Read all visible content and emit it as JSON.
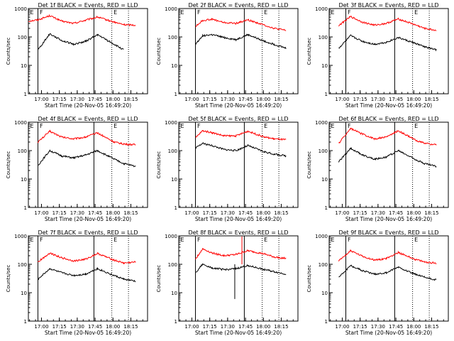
{
  "figure": {
    "common": {
      "xlabel": "Start Time (20-Nov-05 16:49:20)",
      "ylabel": "Counts/sec",
      "x_tick_labels": [
        "17:00",
        "17:15",
        "17:30",
        "17:45",
        "18:00",
        "18:15"
      ],
      "y_tick_labels": [
        "1",
        "10",
        "100",
        "1000"
      ],
      "marker_labels": [
        "E",
        "F",
        "E"
      ],
      "colors": {
        "events": "#000000",
        "lld": "#ff0000",
        "axes": "#000000",
        "background": "#ffffff"
      }
    },
    "titles": [
      "Det 1f BLACK = Events, RED = LLD",
      "Det 2f BLACK = Events, RED = LLD",
      "Det 3f BLACK = Events, RED = LLD",
      "Det 4f BLACK = Events, RED = LLD",
      "Det 5f BLACK = Events, RED = LLD",
      "Det 6f BLACK = Events, RED = LLD",
      "Det 7f BLACK = Events, RED = LLD",
      "Det 8f BLACK = Events, RED = LLD",
      "Det 9f BLACK = Events, RED = LLD"
    ]
  },
  "chart_data": [
    {
      "type": "line",
      "title": "Det 1f BLACK = Events, RED = LLD",
      "xlabel": "Start Time (20-Nov-05 16:49:20)",
      "ylabel": "Counts/sec",
      "y_scale": "log",
      "ylim": [
        1,
        1000
      ],
      "xlim_minutes_after_start": [
        0,
        100
      ],
      "x_minutes": [
        0,
        8,
        18,
        28,
        38,
        48,
        58,
        72,
        80,
        90
      ],
      "series": [
        {
          "name": "LLD",
          "color": "#ff0000",
          "values": [
            360,
            400,
            560,
            360,
            300,
            390,
            500,
            330,
            270,
            260
          ]
        },
        {
          "name": "Events",
          "color": "#000000",
          "values": [
            null,
            35,
            130,
            75,
            55,
            70,
            120,
            55,
            35,
            null
          ]
        }
      ],
      "vertical_lines": {
        "solid_minutes": [
          8,
          55
        ],
        "dotted_minutes": [
          70,
          84
        ]
      }
    },
    {
      "type": "line",
      "title": "Det 2f BLACK = Events, RED = LLD",
      "xlabel": "Start Time (20-Nov-05 16:49:20)",
      "ylabel": "Counts/sec",
      "y_scale": "log",
      "ylim": [
        1,
        1000
      ],
      "xlim_minutes_after_start": [
        0,
        100
      ],
      "x_minutes": [
        0,
        14,
        20,
        28,
        38,
        48,
        58,
        72,
        80,
        90
      ],
      "series": [
        {
          "name": "LLD",
          "color": "#ff0000",
          "values": [
            null,
            230,
            380,
            420,
            320,
            300,
            400,
            260,
            200,
            170
          ]
        },
        {
          "name": "Events",
          "color": "#000000",
          "values": [
            null,
            55,
            110,
            120,
            95,
            80,
            120,
            70,
            55,
            40
          ]
        }
      ],
      "vertical_lines": {
        "solid_minutes": [
          14,
          55
        ],
        "dotted_minutes": [
          70,
          84
        ]
      }
    },
    {
      "type": "line",
      "title": "Det 3f BLACK = Events, RED = LLD",
      "xlabel": "Start Time (20-Nov-05 16:49:20)",
      "ylabel": "Counts/sec",
      "y_scale": "log",
      "ylim": [
        1,
        1000
      ],
      "xlim_minutes_after_start": [
        0,
        100
      ],
      "x_minutes": [
        0,
        8,
        18,
        28,
        38,
        48,
        58,
        72,
        80,
        90
      ],
      "series": [
        {
          "name": "LLD",
          "color": "#ff0000",
          "values": [
            null,
            250,
            520,
            330,
            260,
            300,
            430,
            270,
            200,
            170
          ]
        },
        {
          "name": "Events",
          "color": "#000000",
          "values": [
            null,
            40,
            110,
            70,
            55,
            65,
            95,
            60,
            45,
            35
          ]
        }
      ],
      "vertical_lines": {
        "solid_minutes": [
          14,
          55
        ],
        "dotted_minutes": [
          70,
          84
        ]
      }
    },
    {
      "type": "line",
      "title": "Det 4f BLACK = Events, RED = LLD",
      "xlabel": "Start Time (20-Nov-05 16:49:20)",
      "ylabel": "Counts/sec",
      "y_scale": "log",
      "ylim": [
        1,
        1000
      ],
      "xlim_minutes_after_start": [
        0,
        100
      ],
      "x_minutes": [
        0,
        8,
        18,
        28,
        38,
        48,
        58,
        72,
        80,
        90
      ],
      "series": [
        {
          "name": "LLD",
          "color": "#ff0000",
          "values": [
            null,
            200,
            480,
            300,
            260,
            300,
            420,
            200,
            170,
            160
          ]
        },
        {
          "name": "Events",
          "color": "#000000",
          "values": [
            null,
            30,
            100,
            65,
            55,
            70,
            100,
            50,
            35,
            28
          ]
        }
      ],
      "vertical_lines": {
        "solid_minutes": [
          8,
          55
        ],
        "dotted_minutes": [
          70,
          84
        ]
      }
    },
    {
      "type": "line",
      "title": "Det 5f BLACK = Events, RED = LLD",
      "xlabel": "Start Time (20-Nov-05 16:49:20)",
      "ylabel": "Counts/sec",
      "y_scale": "log",
      "ylim": [
        1,
        1000
      ],
      "xlim_minutes_after_start": [
        0,
        100
      ],
      "x_minutes": [
        0,
        14,
        20,
        28,
        38,
        48,
        58,
        72,
        80,
        90
      ],
      "series": [
        {
          "name": "LLD",
          "color": "#ff0000",
          "values": [
            null,
            280,
            500,
            430,
            330,
            330,
            480,
            300,
            260,
            240
          ]
        },
        {
          "name": "Events",
          "color": "#000000",
          "values": [
            null,
            120,
            180,
            150,
            110,
            100,
            150,
            90,
            75,
            65
          ]
        }
      ],
      "vertical_lines": {
        "solid_minutes": [
          14,
          55
        ],
        "dotted_minutes": [
          70,
          84
        ]
      }
    },
    {
      "type": "line",
      "title": "Det 6f BLACK = Events, RED = LLD",
      "xlabel": "Start Time (20-Nov-05 16:49:20)",
      "ylabel": "Counts/sec",
      "y_scale": "log",
      "ylim": [
        1,
        1000
      ],
      "xlim_minutes_after_start": [
        0,
        100
      ],
      "x_minutes": [
        0,
        8,
        18,
        28,
        38,
        48,
        58,
        72,
        80,
        90
      ],
      "series": [
        {
          "name": "LLD",
          "color": "#ff0000",
          "values": [
            null,
            180,
            600,
            380,
            260,
            300,
            500,
            240,
            180,
            160
          ]
        },
        {
          "name": "Events",
          "color": "#000000",
          "values": [
            null,
            40,
            120,
            70,
            50,
            60,
            100,
            50,
            35,
            28
          ]
        }
      ],
      "vertical_lines": {
        "solid_minutes": [
          14,
          55
        ],
        "dotted_minutes": [
          70,
          84
        ]
      }
    },
    {
      "type": "line",
      "title": "Det 7f BLACK = Events, RED = LLD",
      "xlabel": "Start Time (20-Nov-05 16:49:20)",
      "ylabel": "Counts/sec",
      "y_scale": "log",
      "ylim": [
        1,
        1000
      ],
      "xlim_minutes_after_start": [
        0,
        100
      ],
      "x_minutes": [
        0,
        8,
        18,
        28,
        38,
        48,
        58,
        72,
        80,
        90
      ],
      "series": [
        {
          "name": "LLD",
          "color": "#ff0000",
          "values": [
            null,
            120,
            250,
            170,
            130,
            150,
            240,
            140,
            110,
            120
          ]
        },
        {
          "name": "Events",
          "color": "#000000",
          "values": [
            null,
            30,
            70,
            50,
            40,
            45,
            70,
            40,
            30,
            25
          ]
        }
      ],
      "vertical_lines": {
        "solid_minutes": [
          8,
          55
        ],
        "dotted_minutes": [
          70,
          84
        ]
      }
    },
    {
      "type": "line",
      "title": "Det 8f BLACK = Events, RED = LLD",
      "xlabel": "Start Time (20-Nov-05 16:49:20)",
      "ylabel": "Counts/sec",
      "y_scale": "log",
      "ylim": [
        1,
        1000
      ],
      "xlim_minutes_after_start": [
        0,
        100
      ],
      "x_minutes": [
        0,
        14,
        20,
        28,
        38,
        48,
        58,
        72,
        80,
        90
      ],
      "series": [
        {
          "name": "LLD",
          "color": "#ff0000",
          "values": [
            null,
            150,
            350,
            250,
            200,
            220,
            300,
            230,
            180,
            160
          ]
        },
        {
          "name": "Events",
          "color": "#000000",
          "values": [
            null,
            50,
            100,
            75,
            65,
            70,
            90,
            65,
            55,
            45
          ]
        }
      ],
      "vertical_lines": {
        "solid_minutes": [
          14,
          55
        ],
        "dotted_minutes": [
          70,
          84
        ]
      },
      "spikes_minutes": [
        47,
        53
      ]
    },
    {
      "type": "line",
      "title": "Det 9f BLACK = Events, RED = LLD",
      "xlabel": "Start Time (20-Nov-05 16:49:20)",
      "ylabel": "Counts/sec",
      "y_scale": "log",
      "ylim": [
        1,
        1000
      ],
      "xlim_minutes_after_start": [
        0,
        100
      ],
      "x_minutes": [
        0,
        8,
        18,
        28,
        38,
        48,
        58,
        72,
        80,
        90
      ],
      "series": [
        {
          "name": "LLD",
          "color": "#ff0000",
          "values": [
            null,
            130,
            300,
            190,
            140,
            160,
            260,
            150,
            120,
            110
          ]
        },
        {
          "name": "Events",
          "color": "#000000",
          "values": [
            null,
            35,
            90,
            60,
            45,
            50,
            80,
            45,
            35,
            28
          ]
        }
      ],
      "vertical_lines": {
        "solid_minutes": [
          14,
          55
        ],
        "dotted_minutes": [
          70,
          84
        ]
      }
    }
  ]
}
